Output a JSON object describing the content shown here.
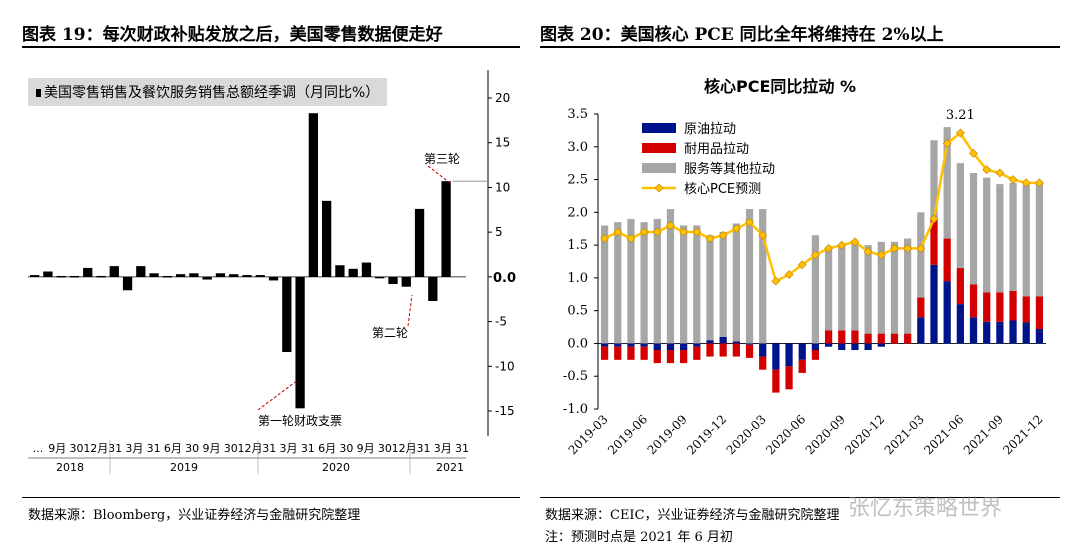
{
  "left": {
    "title": "图表 19：每次财政补贴发放之后，美国零售数据便走好",
    "source": "数据来源：Bloomberg，兴业证券经济与金融研究院整理"
  },
  "right": {
    "title": "图表 20：美国核心 PCE 同比全年将维持在 2%以上",
    "source": "数据来源：CEIC，兴业证券经济与金融研究院整理",
    "note": "注：预测时点是 2021 年 6 月初"
  },
  "watermark": "张忆东策略世界",
  "chart_data": [
    {
      "type": "bar",
      "title": "",
      "legend": [
        "美国零售销售及餐饮服务销售总额经季调（月同比%）"
      ],
      "series": [
        {
          "name": "美国零售销售及餐饮服务销售总额经季调（月同比%）",
          "values": [
            0.2,
            0.6,
            0.1,
            0.1,
            1.0,
            0.1,
            1.2,
            -1.5,
            1.2,
            0.4,
            0.1,
            0.3,
            0.4,
            -0.3,
            0.4,
            0.3,
            0.2,
            0.2,
            -0.4,
            -8.4,
            -14.7,
            18.3,
            8.5,
            1.3,
            0.9,
            1.6,
            -0.1,
            -0.8,
            -1.1,
            7.6,
            -2.7,
            10.7,
            0.0
          ]
        }
      ],
      "ylim": [
        -15,
        20
      ],
      "yticks": [
        20,
        15,
        10,
        5,
        0,
        -5,
        -10,
        -15
      ],
      "zero_label": "0.0",
      "x_tick_labels": [
        "...",
        "9月",
        "30",
        "12月",
        "31",
        "3月",
        "31",
        "6月",
        "30",
        "9月",
        "30",
        "12月",
        "31",
        "3月",
        "31",
        "6月",
        "30",
        "9月",
        "30",
        "12月",
        "31",
        "3月",
        "31"
      ],
      "years": [
        "2018",
        "2019",
        "2020",
        "2021"
      ],
      "annotations": [
        "第一轮财政支票",
        "第二轮",
        "第三轮"
      ],
      "reference_line": 10.7
    },
    {
      "type": "bar",
      "stacked": true,
      "title": "核心PCE同比拉动  %",
      "categories": [
        "2019-03",
        "2019-04",
        "2019-05",
        "2019-06",
        "2019-07",
        "2019-08",
        "2019-09",
        "2019-10",
        "2019-11",
        "2019-12",
        "2020-01",
        "2020-02",
        "2020-03",
        "2020-04",
        "2020-05",
        "2020-06",
        "2020-07",
        "2020-08",
        "2020-09",
        "2020-10",
        "2020-11",
        "2020-12",
        "2021-01",
        "2021-02",
        "2021-03",
        "2021-04",
        "2021-05",
        "2021-06",
        "2021-07",
        "2021-08",
        "2021-09",
        "2021-10",
        "2021-11",
        "2021-12"
      ],
      "x_tick_labels": [
        "2019-03",
        "2019-06",
        "2019-09",
        "2019-12",
        "2020-03",
        "2020-06",
        "2020-09",
        "2020-12",
        "2021-03",
        "2021-06",
        "2021-09",
        "2021-12"
      ],
      "series": [
        {
          "name": "原油拉动",
          "color": "#001489",
          "values": [
            -0.05,
            -0.05,
            -0.05,
            -0.05,
            -0.1,
            -0.1,
            -0.1,
            -0.05,
            0.05,
            0.1,
            0.03,
            -0.02,
            -0.2,
            -0.4,
            -0.35,
            -0.25,
            -0.1,
            -0.05,
            -0.1,
            -0.1,
            -0.1,
            -0.05,
            0.0,
            0.0,
            0.4,
            1.2,
            0.95,
            0.6,
            0.4,
            0.33,
            0.33,
            0.35,
            0.32,
            0.22
          ]
        },
        {
          "name": "耐用品拉动",
          "color": "#d40000",
          "values": [
            -0.2,
            -0.2,
            -0.2,
            -0.2,
            -0.2,
            -0.2,
            -0.2,
            -0.2,
            -0.2,
            -0.2,
            -0.2,
            -0.2,
            -0.2,
            -0.35,
            -0.35,
            -0.2,
            -0.15,
            0.2,
            0.2,
            0.2,
            0.15,
            0.15,
            0.15,
            0.15,
            0.3,
            0.7,
            0.65,
            0.55,
            0.5,
            0.45,
            0.45,
            0.45,
            0.4,
            0.5
          ]
        },
        {
          "name": "服务等其他拉动",
          "color": "#a6a6a6",
          "values": [
            1.8,
            1.85,
            1.9,
            1.85,
            1.9,
            2.05,
            1.8,
            1.8,
            1.6,
            1.6,
            1.8,
            2.05,
            2.05,
            0.0,
            0.0,
            0.0,
            1.65,
            1.25,
            1.3,
            1.35,
            1.35,
            1.4,
            1.4,
            1.45,
            1.3,
            1.2,
            1.7,
            1.6,
            1.7,
            1.75,
            1.65,
            1.65,
            1.7,
            1.75
          ]
        }
      ],
      "line": {
        "name": "核心PCE预测",
        "color": "#ffc000",
        "values": [
          1.6,
          1.7,
          1.6,
          1.7,
          1.7,
          1.8,
          1.7,
          1.7,
          1.6,
          1.65,
          1.75,
          1.85,
          1.65,
          0.95,
          1.05,
          1.2,
          1.35,
          1.45,
          1.5,
          1.55,
          1.4,
          1.35,
          1.45,
          1.45,
          1.45,
          1.9,
          3.05,
          3.21,
          2.9,
          2.65,
          2.6,
          2.5,
          2.45,
          2.45
        ]
      },
      "peak_label": "3.21",
      "ylim": [
        -1.0,
        3.5
      ],
      "yticks": [
        "3.5",
        "3.0",
        "2.5",
        "2.0",
        "1.5",
        "1.0",
        "0.5",
        "0.0",
        "-0.5",
        "-1.0"
      ]
    }
  ]
}
